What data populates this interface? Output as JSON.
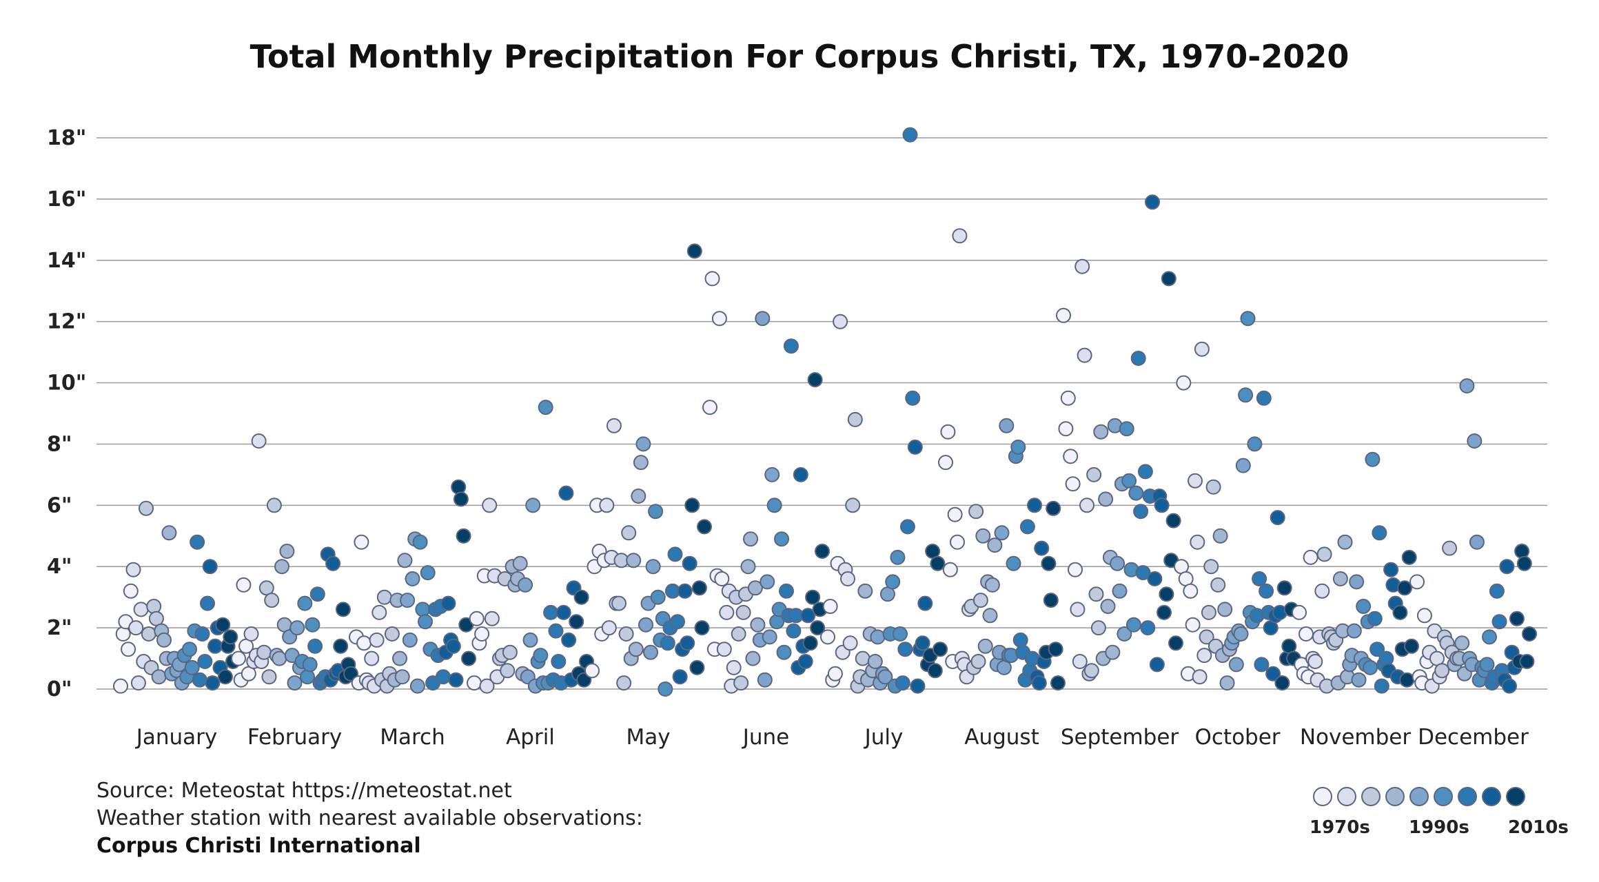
{
  "chart_data": {
    "type": "scatter",
    "title": "Total Monthly Precipitation For Corpus Christi, TX, 1970-2020",
    "xlabel": "",
    "ylabel": "",
    "ylim": [
      0,
      18
    ],
    "yticks": [
      "0\"",
      "2\"",
      "4\"",
      "6\"",
      "8\"",
      "10\"",
      "12\"",
      "14\"",
      "16\"",
      "18\""
    ],
    "months": [
      "January",
      "February",
      "March",
      "April",
      "May",
      "June",
      "July",
      "August",
      "September",
      "October",
      "November",
      "December"
    ],
    "grid": true,
    "legend_position": "bottom-right",
    "decade_colors": [
      "#f2f3fa",
      "#dcdfee",
      "#c2cade",
      "#a2b6d2",
      "#7ea4cb",
      "#4f8fc0",
      "#2b78b3",
      "#125e98",
      "#063f66"
    ],
    "decade_labels": [
      "1970s",
      "1990s",
      "2010s"
    ],
    "series": [
      {
        "month": "January",
        "values": [
          0.1,
          1.8,
          2.2,
          1.3,
          3.2,
          3.9,
          2.0,
          0.2,
          2.6,
          0.9,
          5.9,
          1.8,
          0.7,
          2.7,
          2.3,
          0.4,
          1.9,
          1.6,
          1.0,
          5.1,
          0.5,
          1.0,
          0.6,
          0.8,
          0.2,
          1.1,
          0.4,
          1.3,
          0.7,
          1.9,
          4.8,
          0.3,
          1.8,
          0.9,
          2.8,
          4.0,
          0.2,
          1.4,
          2.0,
          0.7,
          2.1,
          0.4,
          1.4,
          1.7,
          0.9
        ]
      },
      {
        "month": "February",
        "values": [
          1.0,
          0.3,
          3.4,
          1.4,
          0.5,
          1.8,
          0.9,
          1.1,
          8.1,
          0.9,
          1.2,
          3.3,
          0.4,
          2.9,
          6.0,
          1.1,
          1.0,
          4.0,
          2.1,
          4.5,
          1.7,
          1.1,
          0.2,
          2.0,
          0.7,
          0.9,
          2.8,
          0.4,
          0.8,
          2.1,
          1.4,
          3.1,
          0.2,
          0.3,
          0.4,
          4.4,
          0.3,
          4.1,
          0.5,
          0.6,
          1.4,
          2.6,
          0.4,
          0.8,
          0.5
        ]
      },
      {
        "month": "March",
        "values": [
          1.7,
          0.2,
          4.8,
          1.5,
          0.3,
          0.2,
          1.0,
          0.1,
          1.6,
          2.5,
          0.3,
          3.0,
          0.1,
          0.5,
          1.8,
          0.3,
          2.9,
          1.0,
          0.4,
          4.2,
          2.9,
          1.6,
          3.6,
          4.9,
          0.1,
          4.8,
          2.6,
          2.2,
          3.8,
          1.3,
          0.2,
          2.6,
          1.1,
          2.7,
          0.4,
          1.2,
          2.8,
          1.6,
          1.4,
          0.3,
          6.6,
          6.2,
          5.0,
          2.1,
          1.0
        ]
      },
      {
        "month": "April",
        "values": [
          0.2,
          2.3,
          1.5,
          1.8,
          3.7,
          0.1,
          6.0,
          2.3,
          3.7,
          0.4,
          1.0,
          1.1,
          3.6,
          0.6,
          1.2,
          4.0,
          3.4,
          3.6,
          4.1,
          0.5,
          3.4,
          0.4,
          1.6,
          6.0,
          0.1,
          0.9,
          1.1,
          0.2,
          9.2,
          0.2,
          2.5,
          0.3,
          1.9,
          0.9,
          0.2,
          2.5,
          6.4,
          1.6,
          0.3,
          3.3,
          2.2,
          0.5,
          3.0,
          0.3,
          0.9
        ]
      },
      {
        "month": "May",
        "values": [
          0.6,
          4.0,
          6.0,
          4.5,
          1.8,
          4.2,
          6.0,
          2.0,
          4.3,
          8.6,
          2.8,
          2.8,
          4.2,
          0.2,
          1.8,
          5.1,
          1.0,
          4.2,
          1.3,
          6.3,
          7.4,
          8.0,
          2.1,
          2.8,
          1.2,
          4.0,
          5.8,
          3.0,
          1.6,
          2.3,
          0.0,
          1.5,
          2.0,
          3.2,
          4.4,
          2.2,
          0.4,
          1.3,
          3.2,
          1.5,
          4.1,
          6.0,
          14.3,
          0.7,
          3.3,
          2.0,
          5.3
        ]
      },
      {
        "month": "June",
        "values": [
          9.2,
          13.4,
          1.3,
          3.7,
          12.1,
          3.6,
          1.3,
          2.5,
          3.2,
          0.1,
          0.7,
          3.0,
          1.8,
          0.2,
          2.5,
          3.1,
          4.0,
          4.9,
          1.0,
          3.3,
          2.1,
          1.6,
          12.1,
          0.3,
          3.5,
          1.7,
          7.0,
          6.0,
          2.2,
          2.6,
          4.9,
          1.2,
          3.2,
          2.4,
          11.2,
          1.9,
          2.4,
          0.7,
          7.0,
          1.4,
          0.9,
          2.4,
          1.5,
          3.0,
          10.1,
          2.0,
          2.6,
          4.5
        ]
      },
      {
        "month": "July",
        "values": [
          1.7,
          2.7,
          0.3,
          0.5,
          4.1,
          12.0,
          1.2,
          3.9,
          3.6,
          1.5,
          6.0,
          8.8,
          0.1,
          0.4,
          1.0,
          3.2,
          0.3,
          1.8,
          0.6,
          0.9,
          1.7,
          0.2,
          0.5,
          0.4,
          3.1,
          1.8,
          3.5,
          0.1,
          4.3,
          1.8,
          0.2,
          1.3,
          5.3,
          18.1,
          9.5,
          7.9,
          0.1,
          1.3,
          1.5,
          2.8,
          0.8,
          1.1,
          4.5,
          0.6,
          4.1,
          1.3
        ]
      },
      {
        "month": "August",
        "values": [
          7.4,
          8.4,
          3.9,
          0.9,
          5.7,
          4.8,
          14.8,
          1.0,
          0.8,
          0.4,
          2.6,
          2.7,
          0.7,
          5.8,
          0.9,
          2.9,
          5.0,
          1.4,
          3.5,
          2.4,
          3.4,
          4.7,
          0.8,
          1.2,
          5.1,
          0.7,
          8.6,
          1.1,
          1.1,
          4.1,
          7.6,
          7.9,
          1.6,
          1.2,
          0.3,
          5.3,
          0.6,
          1.0,
          6.0,
          0.4,
          0.2,
          4.6,
          0.9,
          1.2,
          4.1,
          2.9,
          5.9,
          1.3,
          0.2
        ]
      },
      {
        "month": "September",
        "values": [
          12.2,
          8.5,
          9.5,
          7.6,
          6.7,
          3.9,
          2.6,
          0.9,
          13.8,
          10.9,
          6.0,
          0.5,
          0.6,
          7.0,
          3.1,
          2.0,
          8.4,
          1.0,
          6.2,
          2.7,
          4.3,
          1.2,
          8.6,
          4.1,
          3.2,
          6.7,
          1.8,
          8.5,
          6.8,
          3.9,
          2.1,
          6.4,
          10.8,
          5.8,
          3.8,
          7.1,
          2.0,
          6.3,
          15.9,
          3.6,
          0.8,
          6.3,
          6.0,
          2.5,
          3.1,
          13.4,
          4.2,
          5.5,
          1.5
        ]
      },
      {
        "month": "October",
        "values": [
          4.0,
          10.0,
          3.6,
          0.5,
          3.2,
          2.1,
          6.8,
          4.8,
          0.4,
          11.1,
          1.1,
          1.7,
          2.5,
          4.0,
          6.6,
          1.4,
          3.4,
          5.0,
          1.1,
          2.6,
          0.2,
          1.3,
          1.5,
          1.7,
          0.8,
          1.9,
          1.8,
          7.3,
          9.6,
          12.1,
          2.5,
          2.2,
          8.0,
          2.4,
          3.6,
          0.8,
          9.5,
          3.2,
          2.5,
          2.0,
          0.5,
          2.4,
          5.6,
          2.5,
          0.2,
          3.3,
          1.0,
          1.4,
          2.6,
          1.0
        ]
      },
      {
        "month": "November",
        "values": [
          2.5,
          0.8,
          0.5,
          1.8,
          0.4,
          4.3,
          1.0,
          0.9,
          0.3,
          1.7,
          3.2,
          4.4,
          0.1,
          1.8,
          1.7,
          1.5,
          1.6,
          0.2,
          3.6,
          1.9,
          4.8,
          0.4,
          0.8,
          1.1,
          1.9,
          3.5,
          0.3,
          1.0,
          2.7,
          0.8,
          2.2,
          0.7,
          7.5,
          2.3,
          1.3,
          5.1,
          0.1,
          0.8,
          1.0,
          0.6,
          3.9,
          3.4,
          2.8,
          0.4,
          2.5,
          1.3,
          3.3,
          0.3,
          4.3,
          1.4
        ]
      },
      {
        "month": "December",
        "values": [
          3.5,
          0.4,
          0.2,
          2.4,
          0.9,
          1.2,
          0.1,
          1.9,
          1.0,
          0.4,
          0.6,
          1.7,
          1.5,
          4.6,
          1.2,
          0.8,
          1.0,
          1.0,
          1.5,
          0.5,
          9.9,
          1.0,
          0.8,
          8.1,
          4.8,
          0.3,
          0.7,
          0.6,
          0.8,
          1.7,
          0.2,
          0.4,
          3.2,
          2.2,
          0.6,
          0.3,
          4.0,
          0.1,
          1.2,
          0.7,
          2.3,
          0.9,
          4.5,
          4.1,
          0.9,
          1.8
        ]
      }
    ]
  },
  "footer": {
    "source": "Source: Meteostat https://meteostat.net",
    "note": "Weather station with nearest available observations:",
    "station": "Corpus Christi International"
  }
}
